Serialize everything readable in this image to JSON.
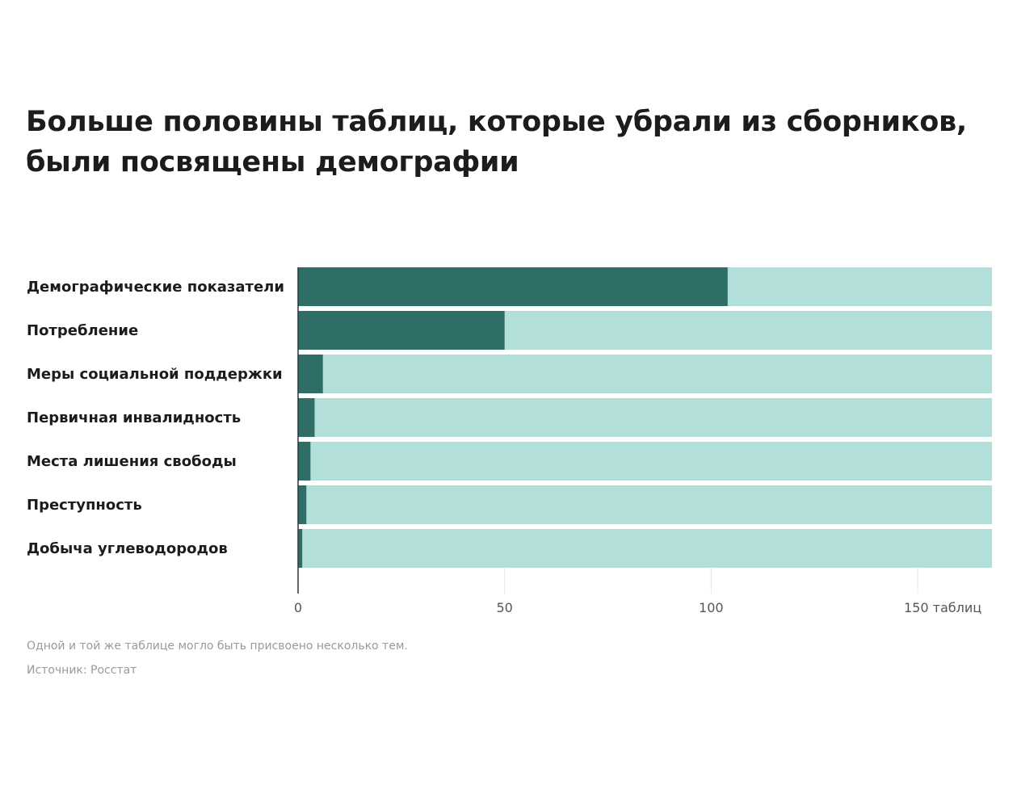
{
  "chart_data": {
    "type": "bar",
    "orientation": "horizontal",
    "title": "Больше половины таблиц, которые убрали из сборников, были посвящены демографии",
    "categories": [
      "Демографические показатели",
      "Потребление",
      "Меры социальной поддержки",
      "Первичная инвалидность",
      "Места лишения свободы",
      "Преступность",
      "Добыча углеводородов"
    ],
    "values": [
      104,
      50,
      6,
      4,
      3,
      2,
      1
    ],
    "background_total": 168,
    "xlim": [
      0,
      168
    ],
    "xticks": [
      0,
      50,
      100,
      150
    ],
    "xtick_labels": [
      "0",
      "50",
      "100",
      "150 таблиц"
    ],
    "grid": false,
    "colors": {
      "value": "#2f6e66",
      "background": "#b2dfda"
    },
    "notes": [
      "Одной и той же таблице могло быть присвоено несколько тем.",
      "Источник: Росстат"
    ]
  }
}
